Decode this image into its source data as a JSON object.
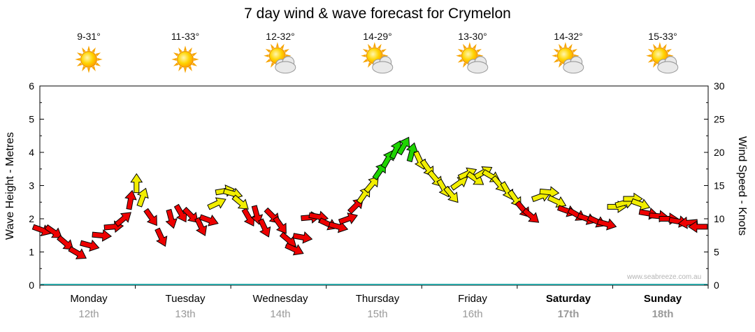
{
  "title": "7 day wind & wave forecast for Crymelon",
  "watermark": "www.seabreeze.com.au",
  "days": [
    {
      "name": "Monday",
      "date": "12th",
      "temp": "9-31°",
      "icon": "sun"
    },
    {
      "name": "Tuesday",
      "date": "13th",
      "temp": "11-33°",
      "icon": "sun"
    },
    {
      "name": "Wednesday",
      "date": "14th",
      "temp": "12-32°",
      "icon": "sun-cloud"
    },
    {
      "name": "Thursday",
      "date": "15th",
      "temp": "14-29°",
      "icon": "sun-cloud"
    },
    {
      "name": "Friday",
      "date": "16th",
      "temp": "13-30°",
      "icon": "sun-cloud"
    },
    {
      "name": "Saturday",
      "date": "17th",
      "temp": "14-32°",
      "icon": "sun-cloud"
    },
    {
      "name": "Sunday",
      "date": "18th",
      "temp": "15-33°",
      "icon": "sun-cloud"
    }
  ],
  "axes": {
    "left_label": "Wave Height - Metres",
    "right_label": "Wind Speed - Knots",
    "wave_ticks": [
      0,
      1,
      2,
      3,
      4,
      5,
      6
    ],
    "knot_ticks": [
      0,
      5,
      10,
      15,
      20,
      25,
      30
    ],
    "wave_range": [
      0,
      6
    ],
    "knots_range": [
      0,
      30
    ]
  },
  "colors": {
    "red": "#ee0000",
    "yellow": "#f2ee00",
    "green": "#1ed400",
    "axis": "#000000",
    "baseline": "#2aa8a8",
    "date_text": "#999999"
  },
  "chart_data": {
    "type": "scatter",
    "title": "7 day wind & wave forecast for Crymelon",
    "x_unit": "hours from Monday 00:00",
    "x_range_hours": [
      0,
      168
    ],
    "knots_range": [
      0,
      30
    ],
    "wave_m_range": [
      0,
      6
    ],
    "dir_convention": "degrees clockwise from pointing right; -90 = up, 180 = left",
    "legend": "arrow color = wind strength band: red low, yellow medium, green high",
    "points": [
      {
        "t": 0.5,
        "knots": 8.3,
        "dir": 20,
        "color": "red"
      },
      {
        "t": 3.5,
        "knots": 8.0,
        "dir": 35,
        "color": "red"
      },
      {
        "t": 6.5,
        "knots": 6.3,
        "dir": 40,
        "color": "red"
      },
      {
        "t": 9.5,
        "knots": 4.8,
        "dir": 30,
        "color": "red"
      },
      {
        "t": 12.5,
        "knots": 6.0,
        "dir": 15,
        "color": "red"
      },
      {
        "t": 15.5,
        "knots": 7.5,
        "dir": 5,
        "color": "red"
      },
      {
        "t": 18.5,
        "knots": 8.8,
        "dir": -5,
        "color": "red"
      },
      {
        "t": 21.0,
        "knots": 10.0,
        "dir": -40,
        "color": "red"
      },
      {
        "t": 22.8,
        "knots": 12.8,
        "dir": -80,
        "color": "red"
      },
      {
        "t": 24.3,
        "knots": 15.3,
        "dir": -90,
        "color": "yellow"
      },
      {
        "t": 25.8,
        "knots": 13.2,
        "dir": -70,
        "color": "yellow"
      },
      {
        "t": 28.0,
        "knots": 10.2,
        "dir": 55,
        "color": "red"
      },
      {
        "t": 30.5,
        "knots": 7.2,
        "dir": 65,
        "color": "red"
      },
      {
        "t": 33.0,
        "knots": 10.0,
        "dir": 75,
        "color": "red"
      },
      {
        "t": 35.5,
        "knots": 10.8,
        "dir": 60,
        "color": "red"
      },
      {
        "t": 38.0,
        "knots": 10.5,
        "dir": 45,
        "color": "red"
      },
      {
        "t": 40.5,
        "knots": 8.8,
        "dir": 65,
        "color": "red"
      },
      {
        "t": 42.5,
        "knots": 9.8,
        "dir": 20,
        "color": "red"
      },
      {
        "t": 44.5,
        "knots": 12.3,
        "dir": -25,
        "color": "yellow"
      },
      {
        "t": 46.5,
        "knots": 14.2,
        "dir": -10,
        "color": "yellow"
      },
      {
        "t": 48.5,
        "knots": 13.8,
        "dir": 15,
        "color": "yellow"
      },
      {
        "t": 50.5,
        "knots": 12.4,
        "dir": 40,
        "color": "yellow"
      },
      {
        "t": 52.5,
        "knots": 10.2,
        "dir": 60,
        "color": "red"
      },
      {
        "t": 54.5,
        "knots": 10.6,
        "dir": 75,
        "color": "red"
      },
      {
        "t": 56.5,
        "knots": 8.6,
        "dir": 65,
        "color": "red"
      },
      {
        "t": 58.5,
        "knots": 10.4,
        "dir": 45,
        "color": "red"
      },
      {
        "t": 60.5,
        "knots": 9.0,
        "dir": 55,
        "color": "red"
      },
      {
        "t": 62.5,
        "knots": 6.8,
        "dir": 40,
        "color": "red"
      },
      {
        "t": 64.0,
        "knots": 5.4,
        "dir": 25,
        "color": "red"
      },
      {
        "t": 66.0,
        "knots": 7.2,
        "dir": 10,
        "color": "red"
      },
      {
        "t": 68.0,
        "knots": 10.2,
        "dir": -5,
        "color": "red"
      },
      {
        "t": 70.0,
        "knots": 10.3,
        "dir": 10,
        "color": "red"
      },
      {
        "t": 72.5,
        "knots": 9.2,
        "dir": 25,
        "color": "red"
      },
      {
        "t": 75.0,
        "knots": 8.8,
        "dir": 15,
        "color": "red"
      },
      {
        "t": 77.5,
        "knots": 10.0,
        "dir": -20,
        "color": "red"
      },
      {
        "t": 79.5,
        "knots": 12.0,
        "dir": -45,
        "color": "red"
      },
      {
        "t": 81.5,
        "knots": 13.6,
        "dir": -55,
        "color": "yellow"
      },
      {
        "t": 83.5,
        "knots": 15.2,
        "dir": -50,
        "color": "yellow"
      },
      {
        "t": 85.5,
        "knots": 17.2,
        "dir": -55,
        "color": "green"
      },
      {
        "t": 87.5,
        "knots": 19.0,
        "dir": -60,
        "color": "green"
      },
      {
        "t": 89.5,
        "knots": 20.4,
        "dir": -65,
        "color": "green"
      },
      {
        "t": 91.5,
        "knots": 21.0,
        "dir": -60,
        "color": "green"
      },
      {
        "t": 93.5,
        "knots": 20.0,
        "dir": -75,
        "color": "green"
      },
      {
        "t": 95.5,
        "knots": 18.8,
        "dir": 65,
        "color": "yellow"
      },
      {
        "t": 97.5,
        "knots": 17.6,
        "dir": 55,
        "color": "yellow"
      },
      {
        "t": 99.5,
        "knots": 16.0,
        "dir": 50,
        "color": "yellow"
      },
      {
        "t": 101.5,
        "knots": 14.6,
        "dir": 60,
        "color": "yellow"
      },
      {
        "t": 103.5,
        "knots": 13.6,
        "dir": 50,
        "color": "yellow"
      },
      {
        "t": 105.5,
        "knots": 15.4,
        "dir": -35,
        "color": "yellow"
      },
      {
        "t": 107.5,
        "knots": 16.8,
        "dir": -25,
        "color": "yellow"
      },
      {
        "t": 109.5,
        "knots": 16.0,
        "dir": 35,
        "color": "yellow"
      },
      {
        "t": 111.5,
        "knots": 17.0,
        "dir": -30,
        "color": "yellow"
      },
      {
        "t": 113.5,
        "knots": 16.4,
        "dir": 30,
        "color": "yellow"
      },
      {
        "t": 115.5,
        "knots": 15.2,
        "dir": 50,
        "color": "yellow"
      },
      {
        "t": 117.5,
        "knots": 14.2,
        "dir": 60,
        "color": "yellow"
      },
      {
        "t": 119.5,
        "knots": 13.0,
        "dir": 55,
        "color": "yellow"
      },
      {
        "t": 121.5,
        "knots": 11.4,
        "dir": 50,
        "color": "red"
      },
      {
        "t": 123.5,
        "knots": 10.4,
        "dir": 40,
        "color": "red"
      },
      {
        "t": 126.0,
        "knots": 13.4,
        "dir": -20,
        "color": "yellow"
      },
      {
        "t": 128.0,
        "knots": 14.0,
        "dir": 5,
        "color": "yellow"
      },
      {
        "t": 130.0,
        "knots": 12.6,
        "dir": 25,
        "color": "yellow"
      },
      {
        "t": 132.5,
        "knots": 11.2,
        "dir": 20,
        "color": "red"
      },
      {
        "t": 135.0,
        "knots": 10.6,
        "dir": 30,
        "color": "red"
      },
      {
        "t": 137.5,
        "knots": 10.0,
        "dir": 20,
        "color": "red"
      },
      {
        "t": 140.0,
        "knots": 9.6,
        "dir": 25,
        "color": "red"
      },
      {
        "t": 142.5,
        "knots": 9.2,
        "dir": 15,
        "color": "red"
      },
      {
        "t": 145.0,
        "knots": 11.8,
        "dir": 0,
        "color": "yellow"
      },
      {
        "t": 147.0,
        "knots": 12.4,
        "dir": -15,
        "color": "yellow"
      },
      {
        "t": 149.0,
        "knots": 13.0,
        "dir": 0,
        "color": "yellow"
      },
      {
        "t": 151.0,
        "knots": 12.2,
        "dir": 20,
        "color": "yellow"
      },
      {
        "t": 153.0,
        "knots": 10.8,
        "dir": 10,
        "color": "red"
      },
      {
        "t": 155.5,
        "knots": 10.4,
        "dir": 5,
        "color": "red"
      },
      {
        "t": 158.0,
        "knots": 10.0,
        "dir": 0,
        "color": "red"
      },
      {
        "t": 160.5,
        "knots": 9.6,
        "dir": 10,
        "color": "red"
      },
      {
        "t": 163.0,
        "knots": 9.4,
        "dir": 175,
        "color": "red"
      },
      {
        "t": 165.5,
        "knots": 8.8,
        "dir": 180,
        "color": "red"
      }
    ]
  }
}
